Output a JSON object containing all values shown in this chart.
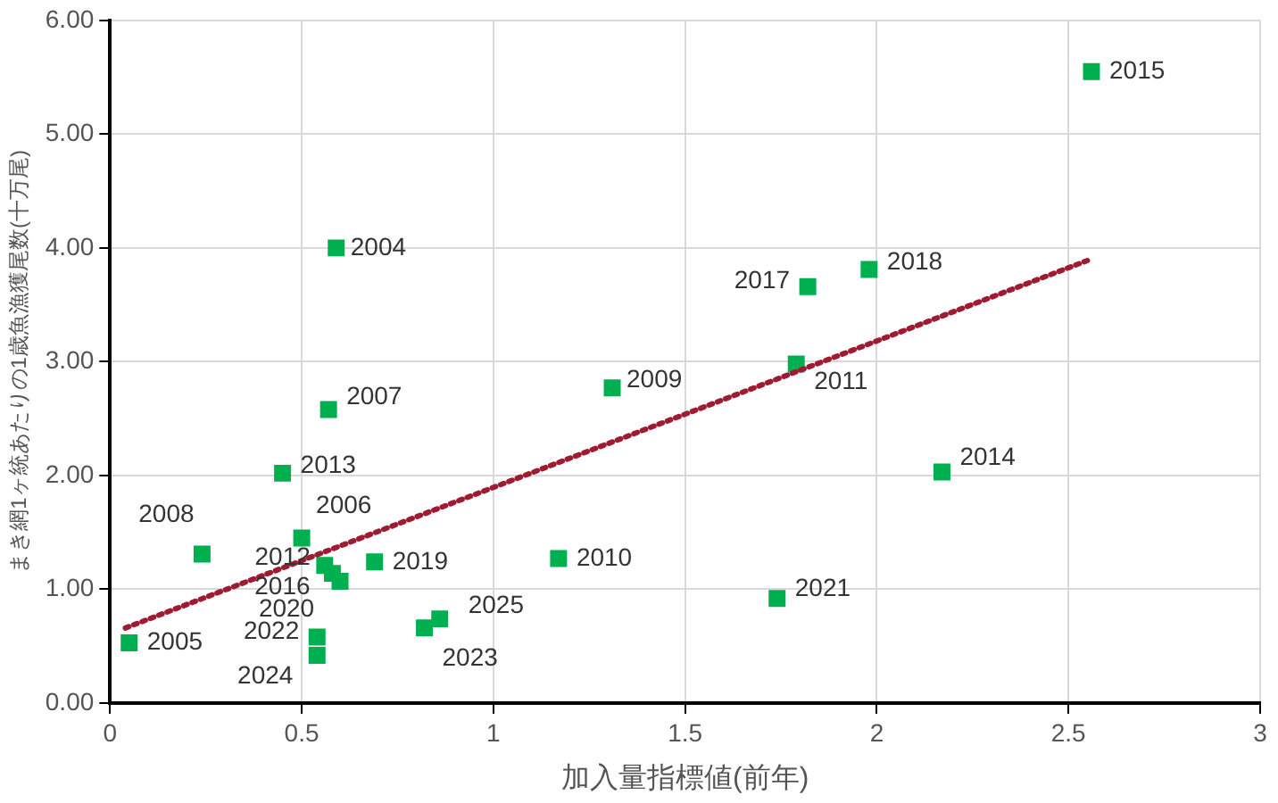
{
  "chart_data": {
    "type": "scatter",
    "xlabel": "加入量指標値(前年)",
    "ylabel": "まき網1ヶ統あたりの1歳魚漁獲尾数(十万尾)",
    "xlim": [
      0,
      3
    ],
    "xticks": [
      0,
      0.5,
      1,
      1.5,
      2,
      2.5,
      3
    ],
    "ylim": [
      0,
      6
    ],
    "yticks": [
      {
        "value": 0,
        "label": "0.00"
      },
      {
        "value": 1,
        "label": "1.00"
      },
      {
        "value": 2,
        "label": "2.00"
      },
      {
        "value": 3,
        "label": "3.00"
      },
      {
        "value": 4,
        "label": "4.00"
      },
      {
        "value": 5,
        "label": "5.00"
      },
      {
        "value": 6,
        "label": "6.00"
      }
    ],
    "grid": true,
    "legend": false,
    "marker": "square",
    "series": [
      {
        "type": "scatter",
        "color": "#00b050",
        "x": [
          0.59,
          0.05,
          0.5,
          0.57,
          0.24,
          1.31,
          1.17,
          1.79,
          0.56,
          0.45,
          2.17,
          2.56,
          0.58,
          1.82,
          1.98,
          0.69,
          0.6,
          1.74,
          0.54,
          0.82,
          0.54,
          0.86
        ],
        "values": [
          4.0,
          0.53,
          1.45,
          2.58,
          1.31,
          2.77,
          1.27,
          2.98,
          1.21,
          2.02,
          2.03,
          5.55,
          1.14,
          3.66,
          3.81,
          1.24,
          1.07,
          0.92,
          0.58,
          0.66,
          0.42,
          0.74
        ]
      },
      {
        "type": "line",
        "color": "#9e1b32",
        "line_style": "dotted",
        "marker": "none",
        "x": [
          0.04,
          2.55
        ],
        "values": [
          0.66,
          3.89
        ]
      }
    ],
    "annotations": [
      {
        "text": "2004",
        "x": 0.59,
        "y": 4.0
      },
      {
        "text": "2005",
        "x": 0.05,
        "y": 0.53
      },
      {
        "text": "2006",
        "x": 0.5,
        "y": 1.45
      },
      {
        "text": "2007",
        "x": 0.57,
        "y": 2.58
      },
      {
        "text": "2008",
        "x": 0.24,
        "y": 1.31
      },
      {
        "text": "2009",
        "x": 1.31,
        "y": 2.77
      },
      {
        "text": "2010",
        "x": 1.17,
        "y": 1.27
      },
      {
        "text": "2011",
        "x": 1.79,
        "y": 2.98
      },
      {
        "text": "2012",
        "x": 0.56,
        "y": 1.21
      },
      {
        "text": "2013",
        "x": 0.45,
        "y": 2.02
      },
      {
        "text": "2014",
        "x": 2.17,
        "y": 2.03
      },
      {
        "text": "2015",
        "x": 2.56,
        "y": 5.55
      },
      {
        "text": "2016",
        "x": 0.58,
        "y": 1.14
      },
      {
        "text": "2017",
        "x": 1.82,
        "y": 3.66
      },
      {
        "text": "2018",
        "x": 1.98,
        "y": 3.81
      },
      {
        "text": "2019",
        "x": 0.69,
        "y": 1.24
      },
      {
        "text": "2020",
        "x": 0.6,
        "y": 1.07
      },
      {
        "text": "2021",
        "x": 1.74,
        "y": 0.92
      },
      {
        "text": "2022",
        "x": 0.54,
        "y": 0.58
      },
      {
        "text": "2023",
        "x": 0.82,
        "y": 0.66
      },
      {
        "text": "2024",
        "x": 0.54,
        "y": 0.42
      },
      {
        "text": "2025",
        "x": 0.86,
        "y": 0.74
      }
    ]
  }
}
